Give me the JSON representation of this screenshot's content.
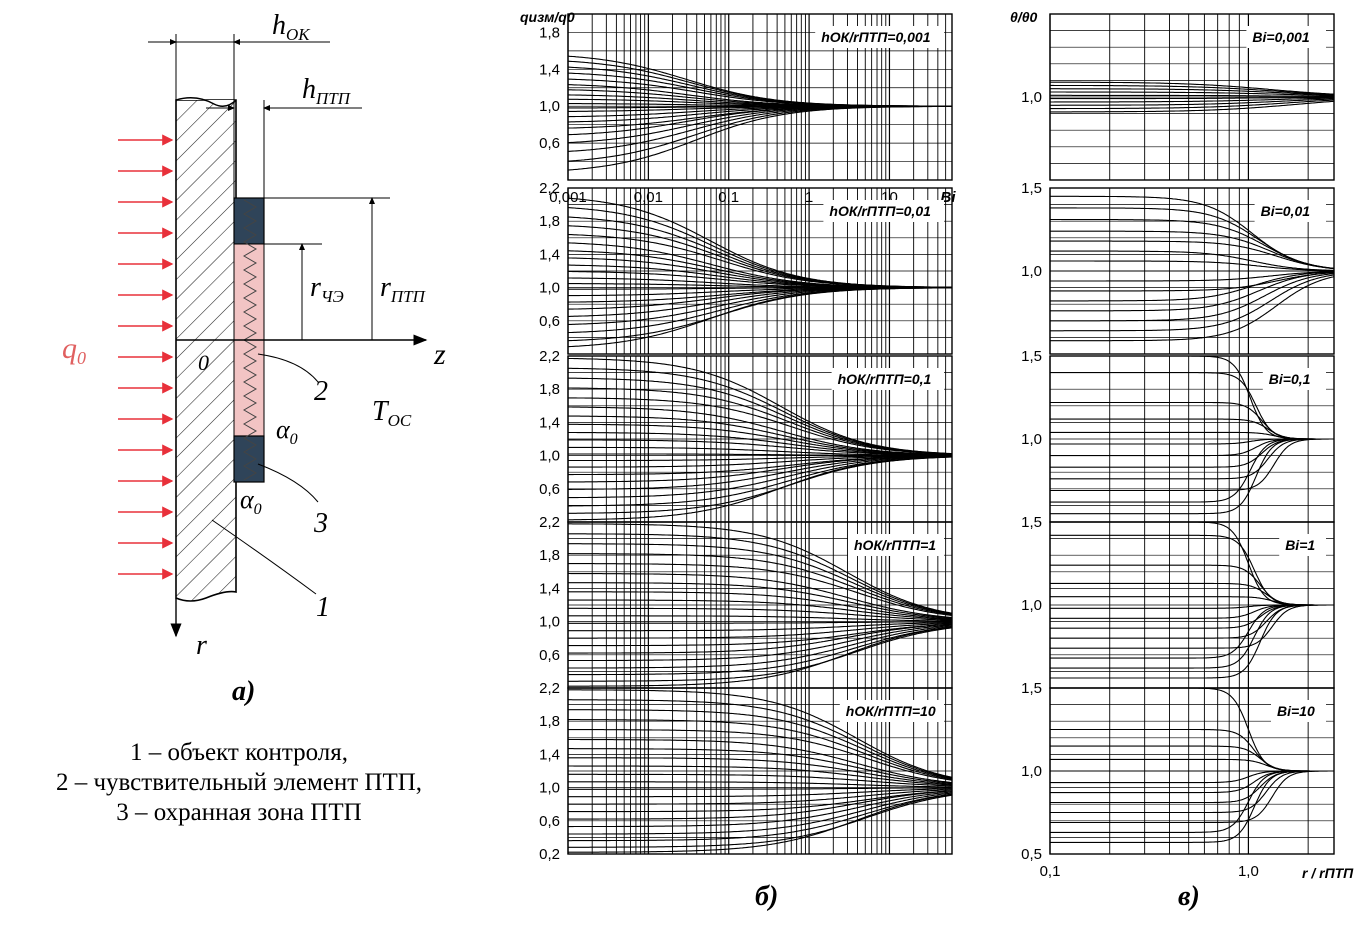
{
  "schematic": {
    "h_ok": "h",
    "h_ok_sub": "ОК",
    "h_ptp": "h",
    "h_ptp_sub": "ПТП",
    "r_che": "r",
    "r_che_sub": "ЧЭ",
    "r_ptp": "r",
    "r_ptp_sub": "ПТП",
    "q0": "q",
    "q0_sub": "0",
    "origin": "0",
    "axis_z": "z",
    "axis_r": "r",
    "t_oc": "T",
    "t_oc_sub": "ОС",
    "alpha_top": "α",
    "alpha_top_sub": "0",
    "alpha_bottom": "α",
    "alpha_bottom_sub": "0",
    "callout_1": "1",
    "callout_2": "2",
    "callout_3": "3",
    "panel_label": "а)",
    "legend": [
      "1 – объект контроля,",
      "2 – чувствительный элемент ПТП,",
      "3 – охранная зона ПТП"
    ]
  },
  "panel_b_label": "б)",
  "panel_c_label": "в)",
  "colors": {
    "flux_arrows": "#e8303a",
    "guard_zone": "#2f4459",
    "sensor": "#f2c4c4",
    "q0_label": "#e06060"
  },
  "chart_data": [
    {
      "type": "line",
      "group": "б",
      "title": "hОК/rПТП=0,001",
      "ylabel": "qизм/q0",
      "xlabel": "",
      "x_scale": "log",
      "x_ticks": [
        "0,001",
        "0,01",
        "0,1",
        "1",
        "10",
        "Bi"
      ],
      "xlim": [
        0.001,
        60
      ],
      "ylim": [
        0.2,
        2.0
      ],
      "y_ticks": [
        "1,8",
        "1,4",
        "1,0",
        "0,6"
      ],
      "transition_center": 0.03,
      "series_start_values": [
        1.58,
        1.52,
        1.45,
        1.38,
        1.31,
        1.25,
        1.19,
        1.13,
        1.08,
        1.03,
        0.98,
        0.94,
        0.88,
        0.82,
        0.75,
        0.67,
        0.58,
        0.48,
        0.37,
        0.27
      ],
      "asymptote": 1.0
    },
    {
      "type": "line",
      "group": "б",
      "title": "hОК/rПТП=0,01",
      "x_scale": "log",
      "xlim": [
        0.001,
        60
      ],
      "ylim": [
        0.2,
        2.2
      ],
      "y_ticks": [
        "2,2",
        "1,8",
        "1,4",
        "1,0",
        "0,6"
      ],
      "transition_center": 0.06,
      "series_start_values": [
        2.12,
        2.0,
        1.88,
        1.77,
        1.66,
        1.56,
        1.46,
        1.37,
        1.28,
        1.2,
        1.12,
        1.05,
        0.98,
        0.9,
        0.82,
        0.73,
        0.64,
        0.54,
        0.44,
        0.34,
        0.26
      ],
      "asymptote": 1.0
    },
    {
      "type": "line",
      "group": "б",
      "title": "hОК/rПТП=0,1",
      "x_scale": "log",
      "xlim": [
        0.001,
        60
      ],
      "ylim": [
        0.2,
        2.2
      ],
      "y_ticks": [
        "2,2",
        "1,8",
        "1,4",
        "1,0",
        "0,6"
      ],
      "transition_center": 0.45,
      "series_start_values": [
        2.18,
        2.06,
        1.94,
        1.82,
        1.7,
        1.59,
        1.48,
        1.38,
        1.28,
        1.19,
        1.1,
        1.02,
        0.94,
        0.86,
        0.77,
        0.68,
        0.59,
        0.49,
        0.39,
        0.3,
        0.22
      ],
      "asymptote": 1.0
    },
    {
      "type": "line",
      "group": "б",
      "title": "hОК/rПТП=1",
      "x_scale": "log",
      "xlim": [
        0.001,
        60
      ],
      "ylim": [
        0.2,
        2.2
      ],
      "y_ticks": [
        "2,2",
        "1,8",
        "1,4",
        "1,0",
        "0,6"
      ],
      "transition_center": 3.0,
      "series_start_values": [
        2.18,
        2.06,
        1.94,
        1.82,
        1.7,
        1.58,
        1.47,
        1.36,
        1.26,
        1.16,
        1.07,
        0.98,
        0.89,
        0.8,
        0.71,
        0.62,
        0.53,
        0.44,
        0.36,
        0.28,
        0.22
      ],
      "asymptote": 1.0
    },
    {
      "type": "line",
      "group": "б",
      "title": "hОК/rПТП=10",
      "x_scale": "log",
      "xlim": [
        0.001,
        60
      ],
      "ylim": [
        0.2,
        2.2
      ],
      "y_ticks": [
        "2,2",
        "1,8",
        "1,4",
        "1,0",
        "0,6",
        "0,2"
      ],
      "transition_center": 4.0,
      "series_start_values": [
        2.18,
        2.06,
        1.94,
        1.82,
        1.7,
        1.58,
        1.47,
        1.36,
        1.26,
        1.16,
        1.07,
        0.98,
        0.89,
        0.8,
        0.71,
        0.62,
        0.53,
        0.44,
        0.36,
        0.28,
        0.22
      ],
      "asymptote": 1.0
    },
    {
      "type": "line",
      "group": "в",
      "title": "Bi=0,001",
      "ylabel": "θ/θ0",
      "x_scale": "log",
      "xlim": [
        0.1,
        2.7
      ],
      "ylim": [
        0.5,
        1.5
      ],
      "y_ticks": [
        "1,0"
      ],
      "transition_center": 1.3,
      "series_start_values": [
        1.09,
        1.07,
        1.05,
        1.03,
        1.01,
        0.99,
        0.97,
        0.95,
        0.93,
        0.91
      ],
      "asymptote": 1.0
    },
    {
      "type": "line",
      "group": "в",
      "title": "Bi=0,01",
      "x_scale": "log",
      "xlim": [
        0.1,
        2.7
      ],
      "ylim": [
        0.5,
        1.5
      ],
      "y_ticks": [
        "1,5",
        "1,0"
      ],
      "transition_center": 1.05,
      "series_start_values": [
        1.45,
        1.38,
        1.31,
        1.24,
        1.18,
        1.12,
        1.06,
        1.0,
        0.94,
        0.88,
        0.82,
        0.76,
        0.7,
        0.64,
        0.58
      ],
      "asymptote": 1.0
    },
    {
      "type": "line",
      "group": "в",
      "title": "Bi=0,1",
      "x_scale": "log",
      "xlim": [
        0.1,
        2.7
      ],
      "ylim": [
        0.5,
        1.5
      ],
      "y_ticks": [
        "1,5",
        "1,0"
      ],
      "transition_center": 1.02,
      "series_start_values": [
        1.5,
        1.4,
        1.22,
        1.12,
        1.04,
        0.97,
        0.9,
        0.83,
        0.76,
        0.69,
        0.62,
        0.55
      ],
      "asymptote": 1.0
    },
    {
      "type": "line",
      "group": "в",
      "title": "Bi=1",
      "x_scale": "log",
      "xlim": [
        0.1,
        2.7
      ],
      "ylim": [
        0.5,
        1.5
      ],
      "y_ticks": [
        "1,5",
        "1,0"
      ],
      "transition_center": 1.0,
      "series_start_values": [
        1.5,
        1.42,
        1.24,
        1.13,
        1.05,
        0.98,
        0.92,
        0.86,
        0.8,
        0.74,
        0.68,
        0.62,
        0.56
      ],
      "asymptote": 1.0
    },
    {
      "type": "line",
      "group": "в",
      "title": "Bi=10",
      "xlabel": "r / rПТП",
      "x_scale": "log",
      "xlim": [
        0.1,
        2.7
      ],
      "ylim": [
        0.5,
        1.5
      ],
      "y_ticks": [
        "1,5",
        "1,0",
        "0,5"
      ],
      "x_ticks": [
        "0,1",
        "1,0"
      ],
      "transition_center": 1.0,
      "series_start_values": [
        1.5,
        1.25,
        1.15,
        1.07,
        1.0,
        0.93,
        0.87,
        0.81,
        0.75,
        0.69,
        0.63,
        0.57
      ],
      "asymptote": 1.0
    }
  ]
}
